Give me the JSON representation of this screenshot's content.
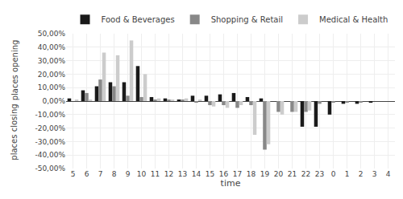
{
  "chart_data": {
    "type": "bar",
    "xlabel": "time",
    "annotations": [
      "places opening",
      "places closing"
    ],
    "categories": [
      "5",
      "6",
      "7",
      "8",
      "9",
      "10",
      "11",
      "12",
      "13",
      "14",
      "15",
      "16",
      "17",
      "18",
      "19",
      "20",
      "21",
      "22",
      "23",
      "0",
      "1",
      "2",
      "3",
      "4"
    ],
    "series": [
      {
        "name": "Food & Beverages",
        "color": "#1a1a1a",
        "values": [
          0.02,
          0.08,
          0.11,
          0.14,
          0.14,
          0.26,
          0.03,
          0.02,
          0.01,
          0.04,
          0.04,
          0.05,
          0.06,
          0.03,
          0.02,
          0.0,
          0.0,
          -0.19,
          -0.19,
          -0.1,
          -0.02,
          -0.02,
          -0.01,
          0.0
        ]
      },
      {
        "name": "Shopping & Retail",
        "color": "#888888",
        "values": [
          0.0,
          0.06,
          0.16,
          0.11,
          0.04,
          0.03,
          0.01,
          0.01,
          0.01,
          -0.01,
          -0.03,
          -0.03,
          -0.05,
          -0.03,
          -0.36,
          -0.08,
          -0.08,
          -0.08,
          -0.02,
          -0.01,
          -0.01,
          -0.01,
          0.0,
          0.0
        ]
      },
      {
        "name": "Medical & Health",
        "color": "#cccccc",
        "values": [
          0.01,
          0.01,
          0.36,
          0.34,
          0.45,
          0.2,
          0.02,
          0.01,
          0.02,
          0.01,
          -0.04,
          -0.05,
          -0.03,
          -0.25,
          -0.32,
          -0.1,
          -0.08,
          -0.07,
          0.0,
          0.0,
          0.0,
          0.0,
          0.0,
          0.0
        ]
      }
    ],
    "ylim": [
      -0.5,
      0.5
    ],
    "yticks": [
      {
        "value": -0.5,
        "label": "-50,00%"
      },
      {
        "value": -0.4,
        "label": "-40,00%"
      },
      {
        "value": -0.3,
        "label": "-30,00%"
      },
      {
        "value": -0.2,
        "label": "-20,00%"
      },
      {
        "value": -0.1,
        "label": "-10,00%"
      },
      {
        "value": 0.0,
        "label": "0,00%"
      },
      {
        "value": 0.1,
        "label": "10,00%"
      },
      {
        "value": 0.2,
        "label": "20,00%"
      },
      {
        "value": 0.3,
        "label": "30,00%"
      },
      {
        "value": 0.4,
        "label": "40,00%"
      },
      {
        "value": 0.5,
        "label": "50,00%"
      }
    ],
    "grid": true,
    "legend": "top"
  }
}
